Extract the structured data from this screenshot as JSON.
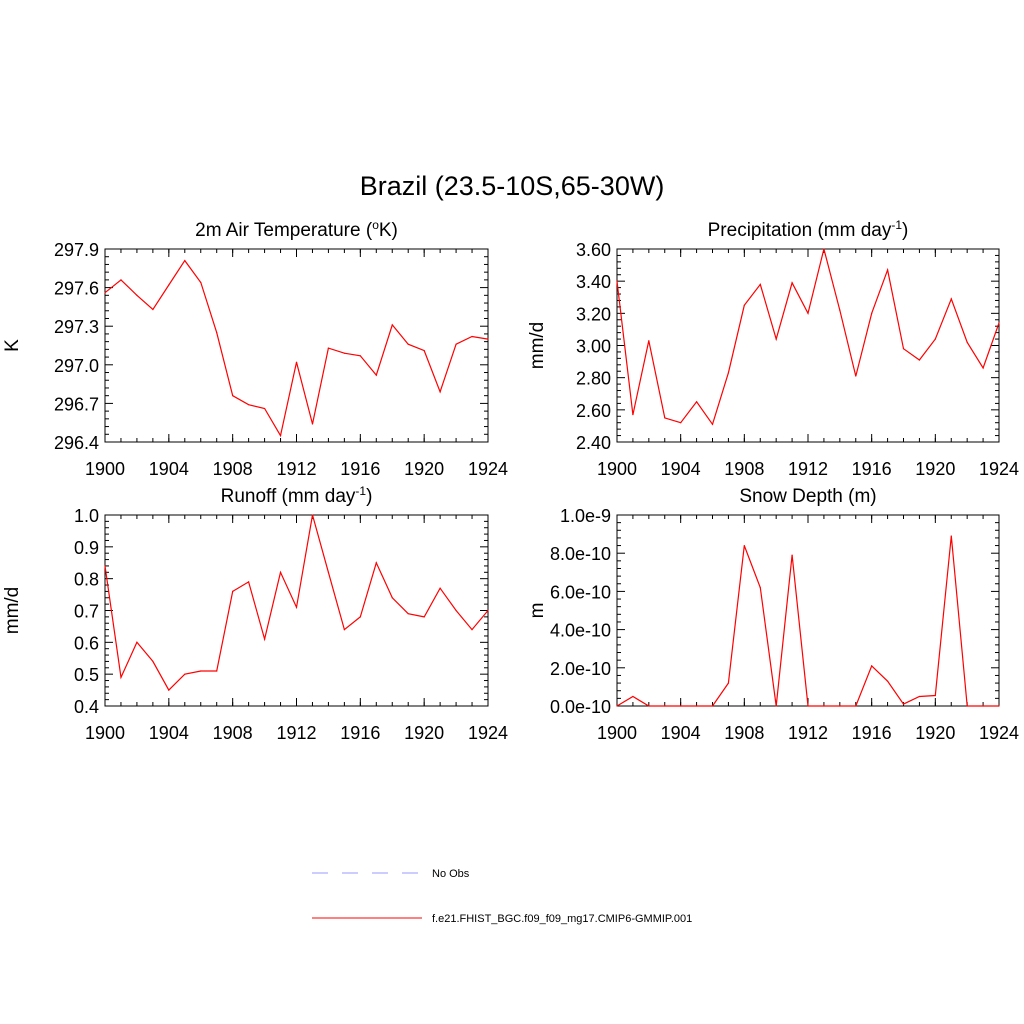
{
  "title": "Brazil (23.5-10S,65-30W)",
  "chart_data": [
    {
      "type": "line",
      "title": "2m Air Temperature (",
      "title_sup": "o",
      "title_end": "K)",
      "ylabel": "K",
      "xlim": [
        1900,
        1924
      ],
      "ylim": [
        296.4,
        297.9
      ],
      "xticks": [
        "1900",
        "1904",
        "1908",
        "1912",
        "1916",
        "1920",
        "1924"
      ],
      "yticks": [
        "296.4",
        "296.7",
        "297.0",
        "297.3",
        "297.6",
        "297.9"
      ],
      "series": [
        {
          "color": "#ff0000",
          "x": [
            1900,
            1901,
            1902,
            1903,
            1904,
            1905,
            1906,
            1907,
            1908,
            1909,
            1910,
            1911,
            1912,
            1913,
            1914,
            1915,
            1916,
            1917,
            1918,
            1919,
            1920,
            1921,
            1922,
            1923,
            1924
          ],
          "y": [
            297.56,
            297.66,
            297.54,
            297.43,
            297.62,
            297.81,
            297.64,
            297.25,
            296.76,
            296.69,
            296.66,
            296.45,
            297.02,
            296.54,
            297.13,
            297.09,
            297.07,
            296.92,
            297.31,
            297.16,
            297.11,
            296.79,
            297.16,
            297.22,
            297.2
          ]
        }
      ]
    },
    {
      "type": "line",
      "title": "Precipitation (mm day",
      "title_sup": "-1",
      "title_end": ")",
      "ylabel": "mm/d",
      "xlim": [
        1900,
        1924
      ],
      "ylim": [
        2.4,
        3.6
      ],
      "xticks": [
        "1900",
        "1904",
        "1908",
        "1912",
        "1916",
        "1920",
        "1924"
      ],
      "yticks": [
        "2.40",
        "2.60",
        "2.80",
        "3.00",
        "3.20",
        "3.40",
        "3.60"
      ],
      "series": [
        {
          "color": "#ff0000",
          "x": [
            1900,
            1901,
            1902,
            1903,
            1904,
            1905,
            1906,
            1907,
            1908,
            1909,
            1910,
            1911,
            1912,
            1913,
            1914,
            1915,
            1916,
            1917,
            1918,
            1919,
            1920,
            1921,
            1922,
            1923,
            1924
          ],
          "y": [
            3.4,
            2.57,
            3.03,
            2.55,
            2.52,
            2.65,
            2.51,
            2.83,
            3.25,
            3.38,
            3.04,
            3.39,
            3.2,
            3.6,
            3.22,
            2.81,
            3.2,
            3.47,
            2.98,
            2.91,
            3.04,
            3.29,
            3.02,
            2.86,
            3.14
          ]
        }
      ]
    },
    {
      "type": "line",
      "title": "Runoff (mm day",
      "title_sup": "-1",
      "title_end": ")",
      "ylabel": "mm/d",
      "xlim": [
        1900,
        1924
      ],
      "ylim": [
        0.4,
        1.0
      ],
      "xticks": [
        "1900",
        "1904",
        "1908",
        "1912",
        "1916",
        "1920",
        "1924"
      ],
      "yticks": [
        "0.4",
        "0.5",
        "0.6",
        "0.7",
        "0.8",
        "0.9",
        "1.0"
      ],
      "series": [
        {
          "color": "#ff0000",
          "x": [
            1900,
            1901,
            1902,
            1903,
            1904,
            1905,
            1906,
            1907,
            1908,
            1909,
            1910,
            1911,
            1912,
            1913,
            1914,
            1915,
            1916,
            1917,
            1918,
            1919,
            1920,
            1921,
            1922,
            1923,
            1924
          ],
          "y": [
            0.84,
            0.49,
            0.6,
            0.54,
            0.45,
            0.5,
            0.51,
            0.51,
            0.76,
            0.79,
            0.61,
            0.82,
            0.71,
            1.0,
            0.82,
            0.64,
            0.68,
            0.85,
            0.74,
            0.69,
            0.68,
            0.77,
            0.7,
            0.64,
            0.7
          ]
        }
      ]
    },
    {
      "type": "line",
      "title": "Snow Depth (m)",
      "title_sup": "",
      "title_end": "",
      "ylabel": "m",
      "xlim": [
        1900,
        1924
      ],
      "ylim": [
        0,
        1e-09
      ],
      "xticks": [
        "1900",
        "1904",
        "1908",
        "1912",
        "1916",
        "1920",
        "1924"
      ],
      "yticks": [
        "0.0e-10",
        "2.0e-10",
        "4.0e-10",
        "6.0e-10",
        "8.0e-10",
        "1.0e-9"
      ],
      "series": [
        {
          "color": "#ff0000",
          "x": [
            1900,
            1901,
            1902,
            1903,
            1904,
            1905,
            1906,
            1907,
            1908,
            1909,
            1910,
            1911,
            1912,
            1913,
            1914,
            1915,
            1916,
            1917,
            1918,
            1919,
            1920,
            1921,
            1922,
            1923,
            1924
          ],
          "y": [
            0,
            5e-11,
            0,
            0,
            0,
            0,
            0,
            1.2e-10,
            8.4e-10,
            6.2e-10,
            0,
            7.9e-10,
            0,
            0,
            0,
            0,
            2.1e-10,
            1.3e-10,
            1e-11,
            5e-11,
            5.5e-11,
            8.9e-10,
            0,
            0,
            0
          ]
        }
      ]
    }
  ],
  "legend": [
    {
      "label": "No Obs",
      "color": "#9a9aff",
      "dash": "dashed"
    },
    {
      "label": "f.e21.FHIST_BGC.f09_f09_mg17.CMIP6-GMMIP.001",
      "color": "#ff0000",
      "dash": "solid"
    }
  ]
}
